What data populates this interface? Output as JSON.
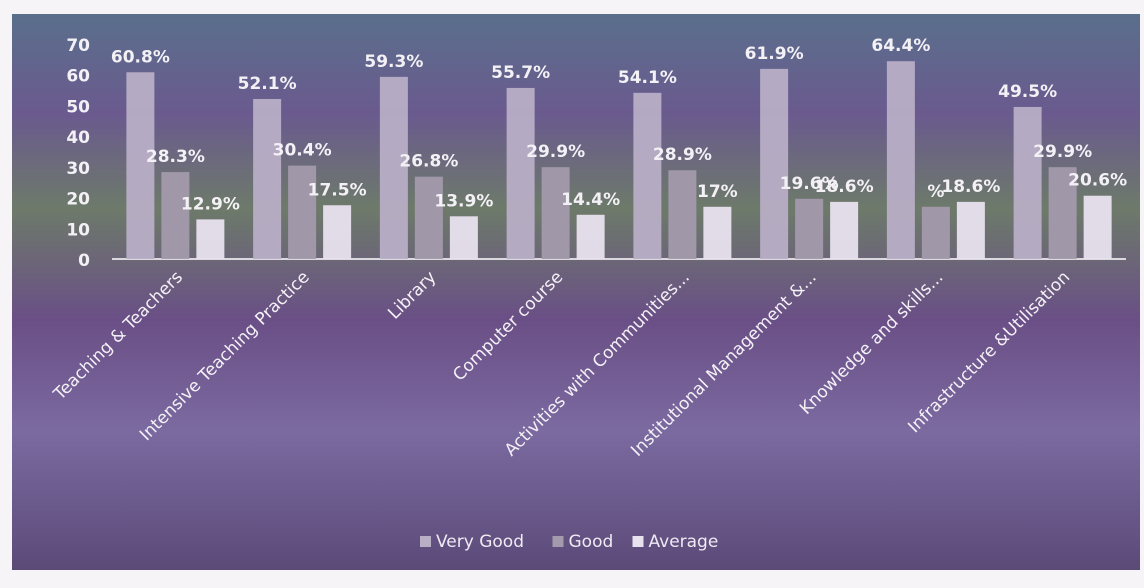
{
  "chart_data": {
    "type": "bar",
    "title": "",
    "xlabel": "",
    "ylabel": "",
    "ylim": [
      0,
      70
    ],
    "yticks": [
      "0",
      "10",
      "20",
      "30",
      "40",
      "50",
      "60",
      "70"
    ],
    "grid": false,
    "legend_position": "bottom",
    "categories": [
      "Teaching & Teachers",
      "Intensive Teaching Practice",
      "Library",
      "Computer course",
      "Activities with Communities...",
      "Institutional Management &...",
      "Knowledge and skills...",
      "Infrastructure &Utilisation"
    ],
    "series": [
      {
        "name": "Very Good",
        "values": [
          60.8,
          52.1,
          59.3,
          55.7,
          54.1,
          61.9,
          64.4,
          49.5
        ],
        "labels": [
          "60.8%",
          "52.1%",
          "59.3%",
          "55.7%",
          "54.1%",
          "61.9%",
          "64.4%",
          "49.5%"
        ]
      },
      {
        "name": "Good",
        "values": [
          28.3,
          30.4,
          26.8,
          29.9,
          28.9,
          19.6,
          17.0,
          29.9
        ],
        "labels": [
          "28.3%",
          "30.4%",
          "26.8%",
          "29.9%",
          "28.9%",
          "19.6%",
          "%",
          "29.9%"
        ]
      },
      {
        "name": "Average",
        "values": [
          12.9,
          17.5,
          13.9,
          14.4,
          17.0,
          18.6,
          18.6,
          20.6
        ],
        "labels": [
          "12.9%",
          "17.5%",
          "13.9%",
          "14.4%",
          "17%",
          "18.6%",
          "18.6%",
          "20.6%"
        ]
      }
    ],
    "colors": {
      "plot_background": "#5e4f86",
      "very_good": "#b8aec6",
      "good": "#a39aac",
      "average": "#e8e2ee",
      "text": "#f4f1f6",
      "legend_text": "#efeaf3"
    }
  }
}
